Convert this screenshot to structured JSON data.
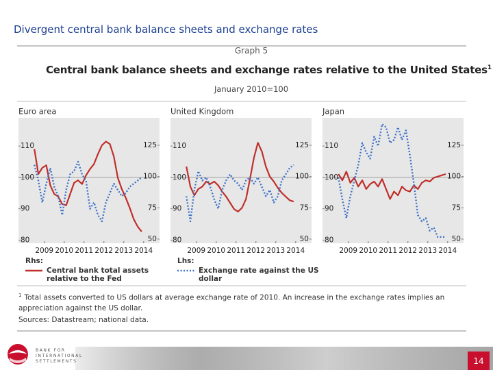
{
  "slide_title": "Divergent central bank balance sheets and exchange rates",
  "graph_label": "Graph 5",
  "chart_title": "Central bank balance sheets and exchange rates relative to the United States",
  "chart_title_note": "1",
  "chart_subtitle": "January 2010=100",
  "legend_axis_labels": [
    "Rhs:",
    "Lhs:"
  ],
  "chart_data": [
    {
      "type": "line",
      "title": "Euro area",
      "x": [
        2009.0,
        2009.2,
        2009.4,
        2009.6,
        2009.8,
        2010.0,
        2010.2,
        2010.4,
        2010.6,
        2010.8,
        2011.0,
        2011.2,
        2011.4,
        2011.6,
        2011.8,
        2012.0,
        2012.2,
        2012.4,
        2012.6,
        2012.8,
        2013.0,
        2013.2,
        2013.4,
        2013.6,
        2013.8,
        2014.0,
        2014.2,
        2014.4
      ],
      "xlim": [
        2008.2,
        2015.3
      ],
      "xticks": [
        {
          "value": 2009.5,
          "label": "2009"
        },
        {
          "value": 2010.5,
          "label": "2010"
        },
        {
          "value": 2011.5,
          "label": "2011"
        },
        {
          "value": 2012.5,
          "label": "2012"
        },
        {
          "value": 2013.5,
          "label": "2013"
        },
        {
          "value": 2014.5,
          "label": "2014"
        }
      ],
      "ylim": [
        79,
        119
      ],
      "yticks": [
        80,
        90,
        100,
        110
      ],
      "y2lim": [
        46.7,
        146.9
      ],
      "y2ticks": [
        50,
        75,
        100,
        125
      ],
      "hline": 100,
      "series": [
        {
          "name": "Central bank total assets relative to the Fed",
          "color": "#bf2f2a",
          "axis": "y2",
          "line_style": "solid",
          "values": [
            122,
            102,
            107,
            109,
            93,
            86,
            84,
            78,
            77,
            86,
            95,
            97,
            94,
            101,
            106,
            110,
            118,
            125,
            128,
            126,
            116,
            99,
            90,
            83,
            75,
            66,
            60,
            56
          ]
        },
        {
          "name": "Exchange rate against the US dollar",
          "color": "#3d72c7",
          "line_style": "dotted",
          "values": [
            104,
            99,
            92,
            98,
            103,
            97,
            94,
            88,
            96,
            101,
            102,
            105,
            101,
            99,
            90,
            92,
            88,
            86,
            92,
            95,
            98,
            96,
            94,
            95,
            97,
            98,
            99,
            100
          ]
        }
      ]
    },
    {
      "type": "line",
      "title": "United Kingdom",
      "x": [
        2009.0,
        2009.2,
        2009.4,
        2009.6,
        2009.8,
        2010.0,
        2010.2,
        2010.4,
        2010.6,
        2010.8,
        2011.0,
        2011.2,
        2011.4,
        2011.6,
        2011.8,
        2012.0,
        2012.2,
        2012.4,
        2012.6,
        2012.8,
        2013.0,
        2013.2,
        2013.4,
        2013.6,
        2013.8,
        2014.0,
        2014.2,
        2014.4
      ],
      "xlim": [
        2008.2,
        2015.3
      ],
      "xticks": [
        {
          "value": 2009.5,
          "label": "2009"
        },
        {
          "value": 2010.5,
          "label": "2010"
        },
        {
          "value": 2011.5,
          "label": "2011"
        },
        {
          "value": 2012.5,
          "label": "2012"
        },
        {
          "value": 2013.5,
          "label": "2013"
        },
        {
          "value": 2014.5,
          "label": "2014"
        }
      ],
      "ylim": [
        79,
        119
      ],
      "yticks": [
        80,
        90,
        100,
        110
      ],
      "y2lim": [
        46.7,
        146.9
      ],
      "y2ticks": [
        50,
        75,
        100,
        125
      ],
      "hline": 100,
      "series": [
        {
          "color": "#bf2f2a",
          "axis": "y2",
          "line_style": "solid",
          "values": [
            108,
            92,
            85,
            90,
            92,
            96,
            94,
            96,
            93,
            88,
            84,
            79,
            74,
            72,
            75,
            82,
            98,
            115,
            127,
            120,
            108,
            100,
            96,
            91,
            87,
            84,
            81,
            80
          ]
        },
        {
          "color": "#3d72c7",
          "line_style": "dotted",
          "values": [
            94,
            86,
            96,
            102,
            99,
            100,
            97,
            93,
            90,
            96,
            99,
            101,
            99,
            98,
            96,
            99,
            100,
            98,
            100,
            97,
            94,
            96,
            92,
            94,
            99,
            101,
            103,
            104
          ]
        }
      ]
    },
    {
      "type": "line",
      "title": "Japan",
      "x": [
        2009.0,
        2009.2,
        2009.4,
        2009.6,
        2009.8,
        2010.0,
        2010.2,
        2010.4,
        2010.6,
        2010.8,
        2011.0,
        2011.2,
        2011.4,
        2011.6,
        2011.8,
        2012.0,
        2012.2,
        2012.4,
        2012.6,
        2012.8,
        2013.0,
        2013.2,
        2013.4,
        2013.6,
        2013.8,
        2014.0,
        2014.2,
        2014.4
      ],
      "xlim": [
        2008.2,
        2015.3
      ],
      "xticks": [
        {
          "value": 2009.5,
          "label": "2009"
        },
        {
          "value": 2010.5,
          "label": "2010"
        },
        {
          "value": 2011.5,
          "label": "2011"
        },
        {
          "value": 2012.5,
          "label": "2012"
        },
        {
          "value": 2013.5,
          "label": "2013"
        },
        {
          "value": 2014.5,
          "label": "2014"
        }
      ],
      "ylim": [
        79,
        119
      ],
      "yticks": [
        80,
        90,
        100,
        110
      ],
      "y2lim": [
        46.7,
        146.9
      ],
      "y2ticks": [
        50,
        75,
        100,
        125
      ],
      "hline": 100,
      "series": [
        {
          "color": "#bf2f2a",
          "axis": "y2",
          "line_style": "solid",
          "values": [
            102,
            97,
            104,
            95,
            99,
            92,
            97,
            90,
            94,
            96,
            92,
            98,
            90,
            82,
            88,
            85,
            92,
            89,
            88,
            93,
            90,
            95,
            97,
            96,
            99,
            100,
            101,
            102
          ]
        },
        {
          "color": "#3d72c7",
          "line_style": "dotted",
          "values": [
            100,
            93,
            87,
            94,
            99,
            104,
            111,
            108,
            106,
            113,
            110,
            117,
            116,
            111,
            112,
            116,
            112,
            115,
            107,
            98,
            88,
            86,
            87,
            83,
            84,
            81,
            81,
            81
          ]
        }
      ]
    }
  ],
  "footnote": {
    "marker": "1",
    "text": "Total assets converted to US dollars at average exchange rate of 2010. An increase in the exchange rates implies an appreciation against the US dollar."
  },
  "sources": "Sources: Datastream; national data.",
  "logo": [
    "BANK FOR",
    "INTERNATIONAL",
    "SETTLEMENTS"
  ],
  "page_number": "14"
}
